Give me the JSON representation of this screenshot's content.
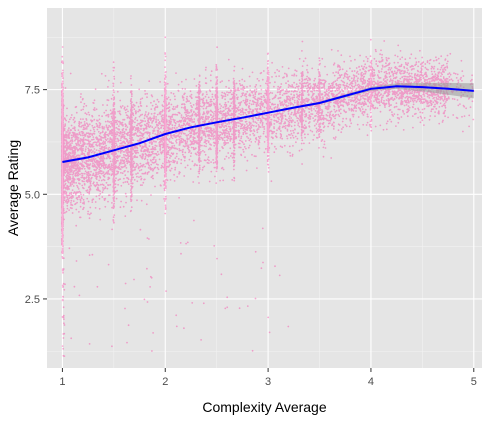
{
  "chart_data": {
    "type": "scatter",
    "title": "",
    "xlabel": "Complexity Average",
    "ylabel": "Average Rating",
    "xlim": [
      0.85,
      5.08
    ],
    "ylim": [
      0.85,
      9.45
    ],
    "xticks": [
      1,
      2,
      3,
      4,
      5
    ],
    "xtick_labels": [
      "1",
      "2",
      "3",
      "4",
      "5"
    ],
    "yticks": [
      2.5,
      5.0,
      7.5
    ],
    "ytick_labels": [
      "2.5",
      "5.0",
      "7.5"
    ],
    "grid": true,
    "background": "ggplot-grey",
    "colors": {
      "panel": "#e5e5e5",
      "grid_major": "#ffffff",
      "points": "#ff1493",
      "smooth_line": "#0000ff",
      "confidence_band": "#999999"
    },
    "points_description": "approximately 10,000 semi-transparent pink points; dense vertical stripes at complexity 1, 1.5, 2, 2.5, 3",
    "smooth": {
      "x": [
        1.0,
        1.25,
        1.5,
        1.75,
        2.0,
        2.25,
        2.5,
        2.75,
        3.0,
        3.25,
        3.5,
        3.75,
        4.0,
        4.25,
        4.5,
        4.75,
        5.0
      ],
      "y": [
        5.77,
        5.88,
        6.05,
        6.22,
        6.44,
        6.6,
        6.72,
        6.83,
        6.95,
        7.07,
        7.18,
        7.35,
        7.52,
        7.58,
        7.56,
        7.52,
        7.47
      ],
      "band_halfwidth": [
        0.03,
        0.02,
        0.02,
        0.02,
        0.02,
        0.02,
        0.02,
        0.02,
        0.02,
        0.02,
        0.03,
        0.04,
        0.05,
        0.07,
        0.1,
        0.14,
        0.18
      ]
    }
  }
}
